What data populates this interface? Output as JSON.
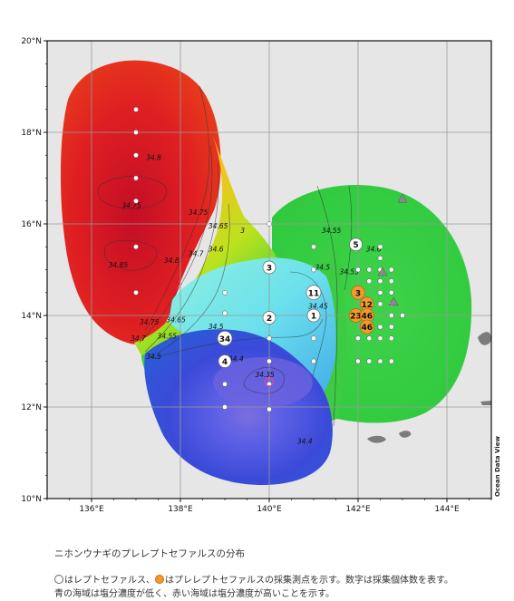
{
  "map": {
    "lat_axis": {
      "labels": [
        "20°N",
        "18°N",
        "16°N",
        "14°N",
        "12°N",
        "10°N"
      ],
      "values": [
        20,
        18,
        16,
        14,
        12,
        10
      ]
    },
    "lon_axis": {
      "labels": [
        "136°E",
        "138°E",
        "140°E",
        "142°E",
        "144°E"
      ],
      "values": [
        136,
        138,
        140,
        142,
        144
      ]
    },
    "watermark": "Ocean Data View",
    "contour_labels": [
      {
        "text": "34.8",
        "lon": 137.4,
        "lat": 17.4
      },
      {
        "text": "34.75",
        "lon": 136.9,
        "lat": 16.35
      },
      {
        "text": "34.85",
        "lon": 136.6,
        "lat": 15.05
      },
      {
        "text": "34.8",
        "lon": 137.8,
        "lat": 15.15
      },
      {
        "text": "34.75",
        "lon": 138.4,
        "lat": 16.2
      },
      {
        "text": "34.7",
        "lon": 138.35,
        "lat": 15.3
      },
      {
        "text": "34.65",
        "lon": 138.85,
        "lat": 15.9
      },
      {
        "text": "34.6",
        "lon": 138.8,
        "lat": 15.4
      },
      {
        "text": "3",
        "lon": 139.4,
        "lat": 15.8
      },
      {
        "text": "34.75",
        "lon": 137.3,
        "lat": 13.8
      },
      {
        "text": "34.7",
        "lon": 137.05,
        "lat": 13.45
      },
      {
        "text": "34.55",
        "lon": 137.7,
        "lat": 13.5
      },
      {
        "text": "34.65",
        "lon": 137.9,
        "lat": 13.85
      },
      {
        "text": "34.5",
        "lon": 137.4,
        "lat": 13.05
      },
      {
        "text": "34.5",
        "lon": 138.8,
        "lat": 13.7
      },
      {
        "text": "34.4",
        "lon": 139.25,
        "lat": 13.0
      },
      {
        "text": "34.35",
        "lon": 139.9,
        "lat": 12.65
      },
      {
        "text": "34.55",
        "lon": 141.4,
        "lat": 15.8
      },
      {
        "text": "34.5",
        "lon": 141.2,
        "lat": 15.0
      },
      {
        "text": "34.55",
        "lon": 141.8,
        "lat": 14.9
      },
      {
        "text": "34.6",
        "lon": 142.35,
        "lat": 15.4
      },
      {
        "text": "34.45",
        "lon": 141.1,
        "lat": 14.15
      },
      {
        "text": "34.4",
        "lon": 140.8,
        "lat": 11.2
      }
    ],
    "white_stations": [
      {
        "lon": 137,
        "lat": 18.5
      },
      {
        "lon": 137,
        "lat": 18.0
      },
      {
        "lon": 137,
        "lat": 17.5
      },
      {
        "lon": 137,
        "lat": 17.0
      },
      {
        "lon": 137,
        "lat": 16.5
      },
      {
        "lon": 137,
        "lat": 15.5
      },
      {
        "lon": 137,
        "lat": 14.5
      },
      {
        "lon": 139,
        "lat": 14.5
      },
      {
        "lon": 139,
        "lat": 14.05
      },
      {
        "lon": 139,
        "lat": 12.5
      },
      {
        "lon": 139,
        "lat": 12.0
      },
      {
        "lon": 140,
        "lat": 16.0
      },
      {
        "lon": 140,
        "lat": 13.5
      },
      {
        "lon": 140,
        "lat": 13.0
      },
      {
        "lon": 140,
        "lat": 12.5
      },
      {
        "lon": 140,
        "lat": 11.95
      },
      {
        "lon": 141,
        "lat": 15.5
      },
      {
        "lon": 141,
        "lat": 15.0
      },
      {
        "lon": 141,
        "lat": 13.5
      },
      {
        "lon": 141,
        "lat": 13.0
      },
      {
        "lon": 142,
        "lat": 15.0
      },
      {
        "lon": 142.25,
        "lat": 15.0
      },
      {
        "lon": 142.5,
        "lat": 15.0
      },
      {
        "lon": 142.75,
        "lat": 15.0
      },
      {
        "lon": 142.5,
        "lat": 15.5
      },
      {
        "lon": 142.5,
        "lat": 15.25
      },
      {
        "lon": 142.75,
        "lat": 14.75
      },
      {
        "lon": 142.5,
        "lat": 14.75
      },
      {
        "lon": 142.25,
        "lat": 14.75
      },
      {
        "lon": 142.75,
        "lat": 14.5
      },
      {
        "lon": 142.75,
        "lat": 14.25
      },
      {
        "lon": 142.75,
        "lat": 14.0
      },
      {
        "lon": 142.5,
        "lat": 14.5
      },
      {
        "lon": 142.5,
        "lat": 14.25
      },
      {
        "lon": 143.0,
        "lat": 14.0
      },
      {
        "lon": 142.75,
        "lat": 13.75
      },
      {
        "lon": 142.5,
        "lat": 13.75
      },
      {
        "lon": 142.25,
        "lat": 13.75
      },
      {
        "lon": 142.0,
        "lat": 13.5
      },
      {
        "lon": 142.25,
        "lat": 13.5
      },
      {
        "lon": 142.5,
        "lat": 13.5
      },
      {
        "lon": 142.75,
        "lat": 13.5
      },
      {
        "lon": 142.0,
        "lat": 13.0
      },
      {
        "lon": 142.25,
        "lat": 13.0
      },
      {
        "lon": 142.5,
        "lat": 13.0
      },
      {
        "lon": 142.75,
        "lat": 13.0
      }
    ],
    "count_white": [
      {
        "text": "3",
        "lon": 140,
        "lat": 15.05
      },
      {
        "text": "2",
        "lon": 140,
        "lat": 13.95
      },
      {
        "text": "34",
        "lon": 139,
        "lat": 13.5
      },
      {
        "text": "4",
        "lon": 139,
        "lat": 13.0
      },
      {
        "text": "11",
        "lon": 141,
        "lat": 14.5
      },
      {
        "text": "1",
        "lon": 141,
        "lat": 14.0
      },
      {
        "text": "5",
        "lon": 141.95,
        "lat": 15.55
      }
    ],
    "count_orange": [
      {
        "text": "3",
        "lon": 142.0,
        "lat": 14.5
      },
      {
        "text": "12",
        "lon": 142.2,
        "lat": 14.25
      },
      {
        "text": "23",
        "lon": 141.95,
        "lat": 14.0
      },
      {
        "text": "46",
        "lon": 142.2,
        "lat": 14.0
      },
      {
        "text": "46",
        "lon": 142.2,
        "lat": 13.75
      }
    ],
    "pink_marker": {
      "lon": 140,
      "lat": 12.55
    },
    "triangles": [
      {
        "lon": 143.0,
        "lat": 16.55
      },
      {
        "lon": 142.55,
        "lat": 14.95
      },
      {
        "lon": 142.8,
        "lat": 14.3
      }
    ]
  },
  "caption": {
    "title": "ニホンウナギのプレレプトセファルスの分布",
    "line1_part1": "はレプトセファルス、",
    "line1_part2": "はプレレプトセファルスの採集測点を示す。数字は採集個体数を表す。",
    "line2": "青の海域は塩分濃度が低く、赤い海域は塩分濃度が高いことを示す。"
  },
  "colors": {
    "white_dot": "#ffffff",
    "orange_dot": "#f39a2e",
    "high_salinity": "#d4182a",
    "low_salinity": "#3a3fd6"
  }
}
